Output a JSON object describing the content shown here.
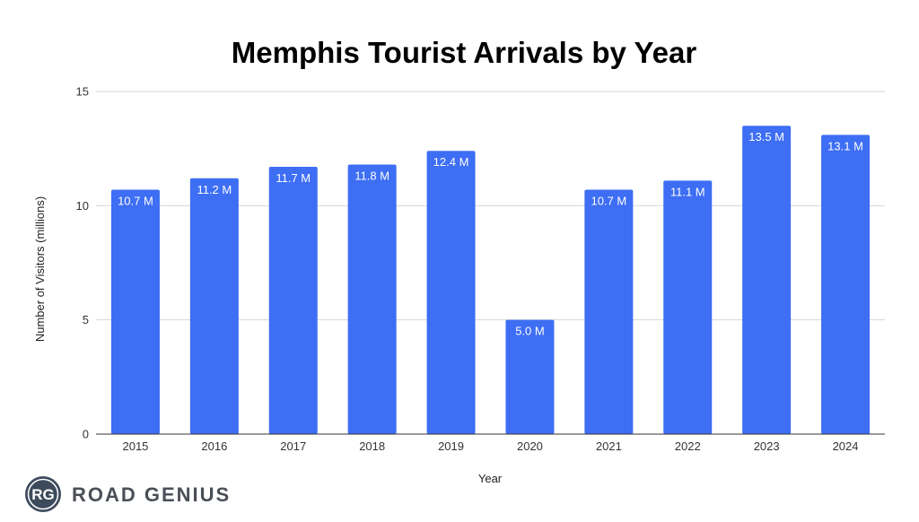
{
  "chart_data": {
    "type": "bar",
    "title": "Memphis Tourist Arrivals by Year",
    "xlabel": "Year",
    "ylabel": "Number of Visitors (millions)",
    "categories": [
      "2015",
      "2016",
      "2017",
      "2018",
      "2019",
      "2020",
      "2021",
      "2022",
      "2023",
      "2024"
    ],
    "values": [
      10.7,
      11.2,
      11.7,
      11.8,
      12.4,
      5.0,
      10.7,
      11.1,
      13.5,
      13.1
    ],
    "data_labels": [
      "10.7 M",
      "11.2 M",
      "11.7 M",
      "11.8 M",
      "12.4 M",
      "5.0 M",
      "10.7 M",
      "11.1 M",
      "13.5 M",
      "13.1 M"
    ],
    "ylim": [
      0,
      15
    ],
    "yticks": [
      0,
      5,
      10,
      15
    ],
    "grid": true,
    "bar_color": "#3d6ef4"
  },
  "branding": {
    "logo_monogram": "RG",
    "logo_text": "ROAD GENIUS",
    "logo_color": "#3d4a5c"
  }
}
